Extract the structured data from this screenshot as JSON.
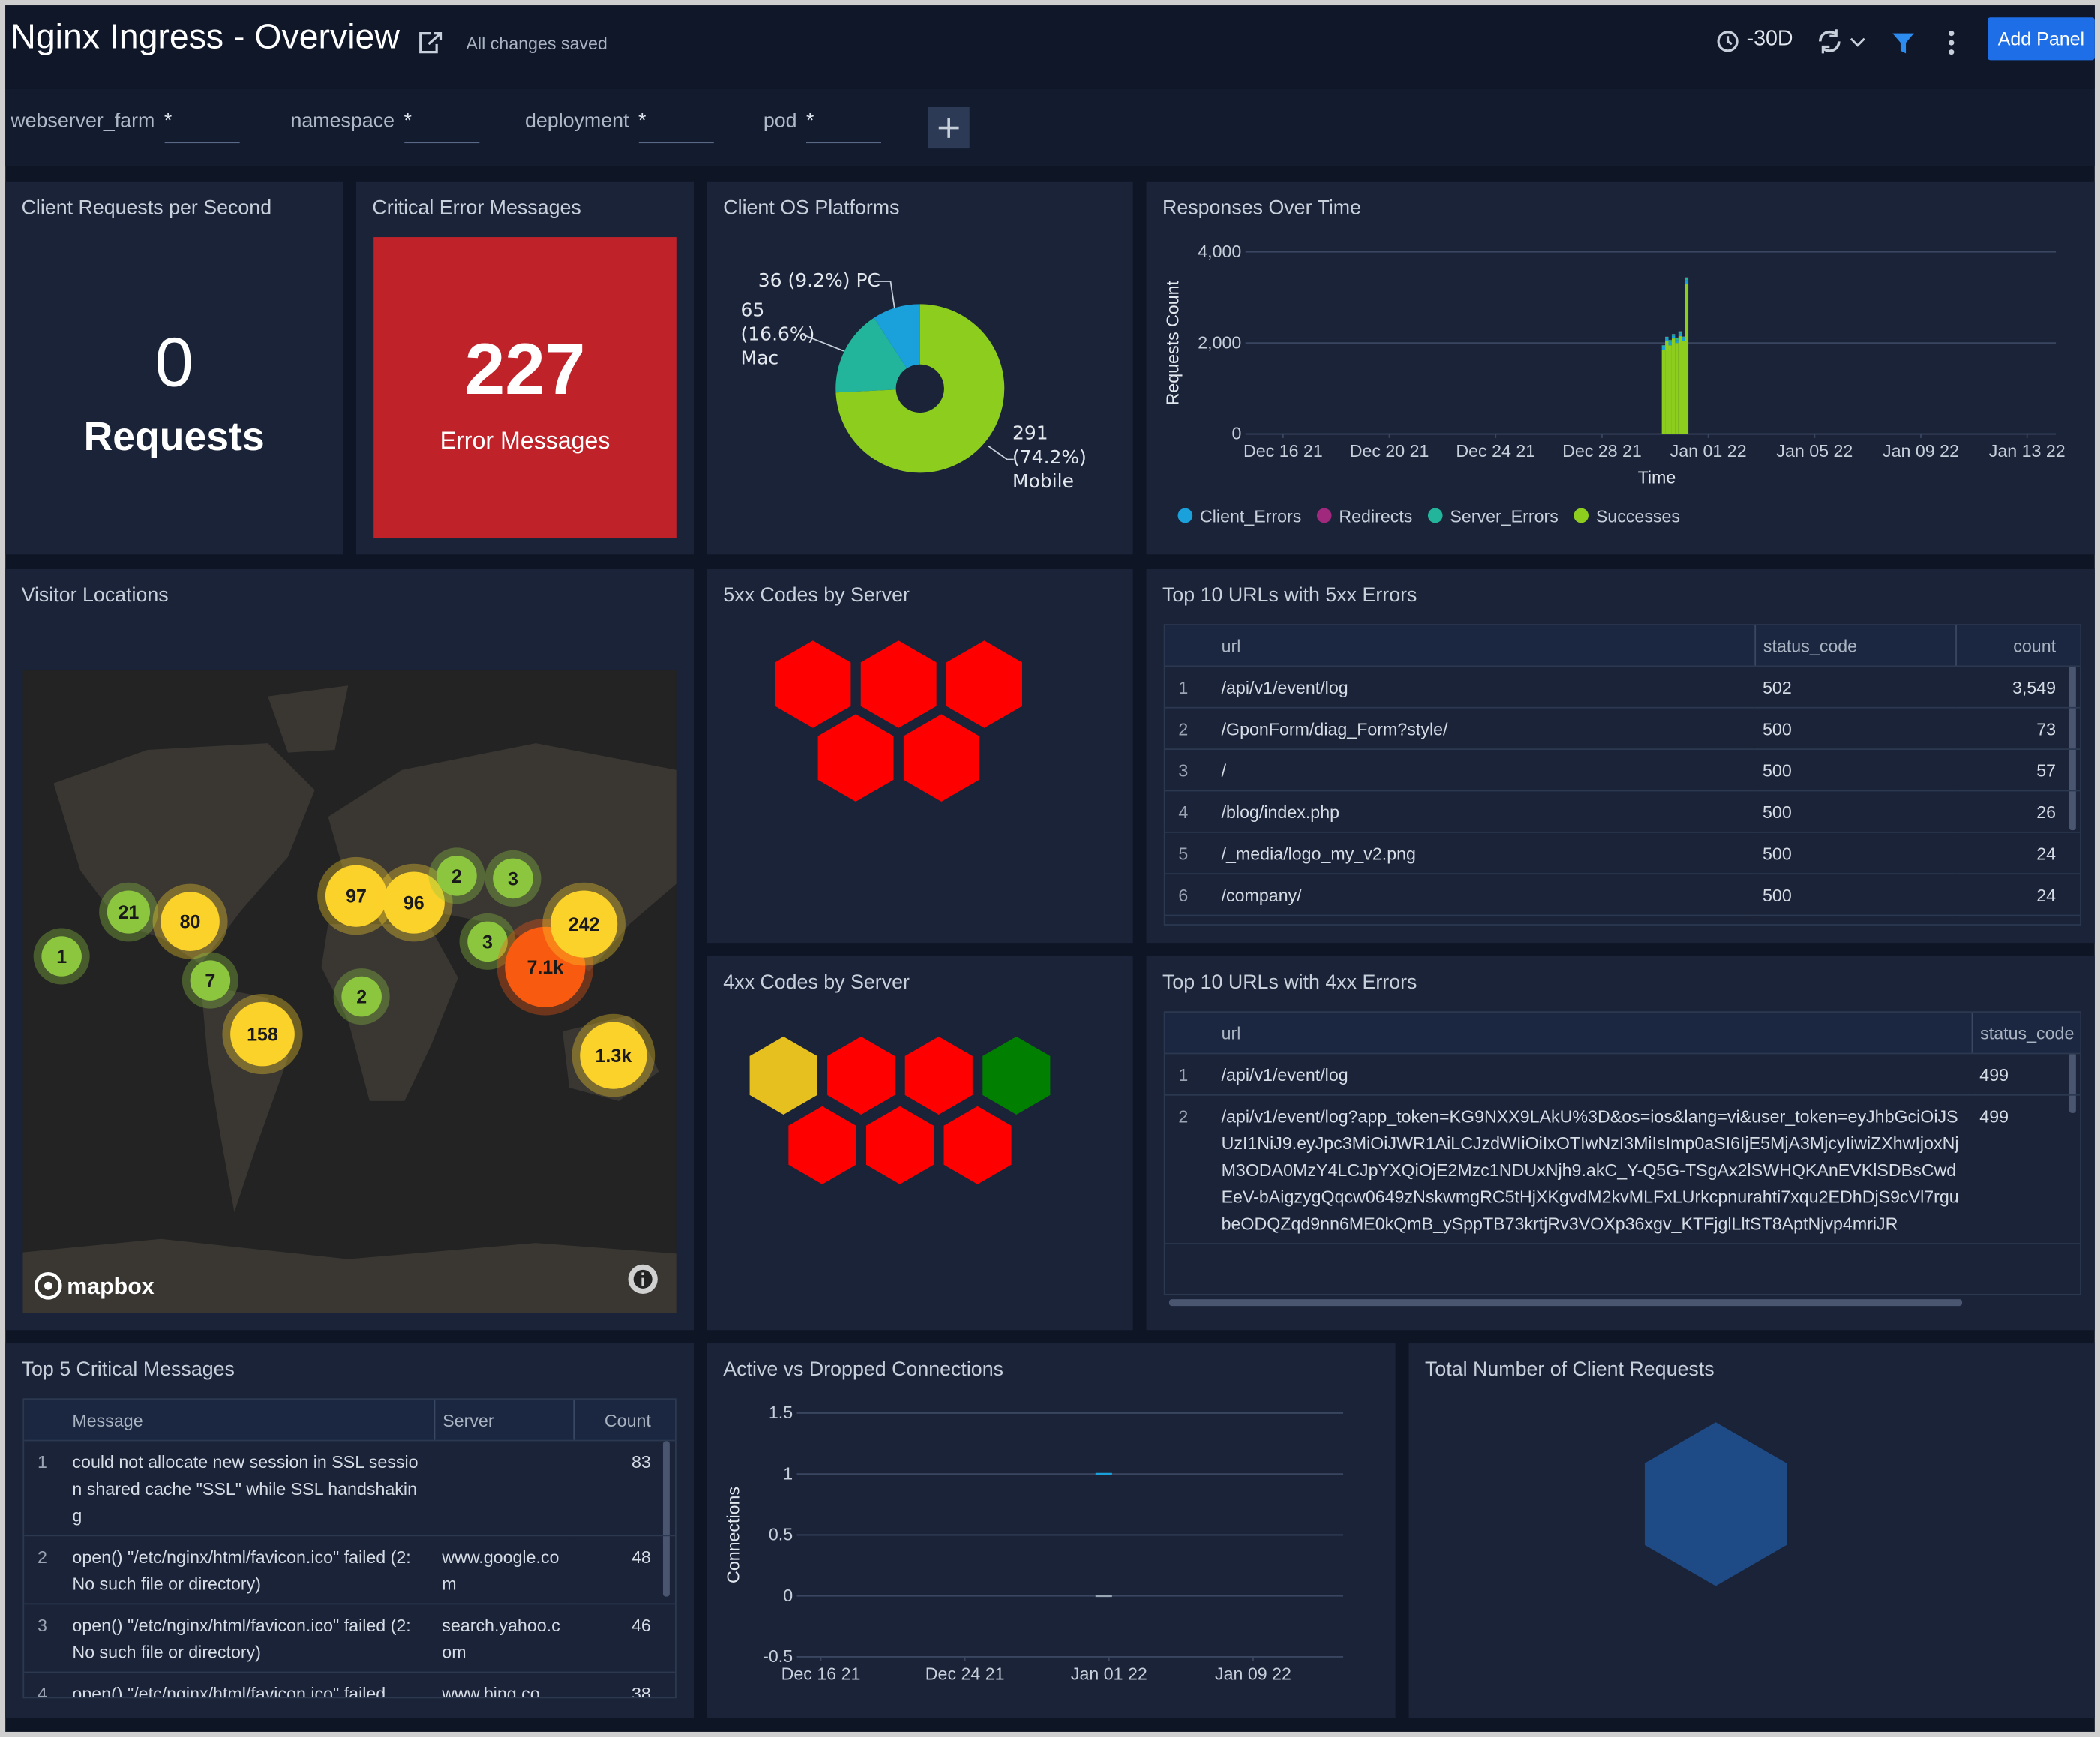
{
  "header": {
    "title": "Nginx Ingress - Overview",
    "status": "All changes saved",
    "time_range": "-30D",
    "add_button": "Add Panel"
  },
  "filters": [
    {
      "label": "webserver_farm",
      "value": "*"
    },
    {
      "label": "namespace",
      "value": "*"
    },
    {
      "label": "deployment",
      "value": "*"
    },
    {
      "label": "pod",
      "value": "*"
    }
  ],
  "stat_panels": [
    {
      "title": "Client Requests per Second",
      "value": 0,
      "unit": "Requests"
    },
    {
      "title": "Critical Error Messages",
      "value": 227,
      "unit": "Error Messages",
      "color": "#c0222a"
    }
  ],
  "chart_data": [
    {
      "type": "pie",
      "title": "Client OS Platforms",
      "categories": [
        "PC",
        "Mac",
        "Mobile"
      ],
      "values": [
        36,
        65,
        291
      ],
      "value_labels": [
        "36 (9.2%)",
        "65 (16.6%)",
        "291 (74.2%)"
      ],
      "colors": [
        "#1aa1dc",
        "#22b59b",
        "#8ccd1e"
      ],
      "donut": true
    },
    {
      "type": "bar",
      "stacked": true,
      "title": "Responses Over Time",
      "x_label": "Time",
      "y_label": "Requests Count",
      "x": [
        "2021-12-30T06:00",
        "2021-12-30T09:00",
        "2021-12-30T12:00",
        "2021-12-30T15:00",
        "2021-12-30T18:00",
        "2021-12-30T21:00",
        "2021-12-31T00:00",
        "2021-12-31T03:00"
      ],
      "series": [
        {
          "name": "Client_Errors",
          "color": "#1aa1dc",
          "values": [
            60,
            50,
            70,
            55,
            65,
            60,
            50,
            80
          ]
        },
        {
          "name": "Redirects",
          "color": "#a0287d",
          "values": [
            5,
            5,
            5,
            5,
            5,
            5,
            5,
            5
          ]
        },
        {
          "name": "Server_Errors",
          "color": "#22b59b",
          "values": [
            40,
            35,
            45,
            40,
            50,
            45,
            40,
            60
          ]
        },
        {
          "name": "Successes",
          "color": "#8ccd1e",
          "values": [
            1850,
            2050,
            1950,
            2100,
            2000,
            2150,
            2050,
            3300
          ]
        }
      ],
      "xlim": [
        "2021-12-14T14:00",
        "2022-01-14T02:00"
      ],
      "xticks": [
        {
          "value": "2021-12-16T00:00",
          "label": "Dec 16 21"
        },
        {
          "value": "2021-12-20T00:00",
          "label": "Dec 20 21"
        },
        {
          "value": "2021-12-24T00:00",
          "label": "Dec 24 21"
        },
        {
          "value": "2021-12-28T00:00",
          "label": "Dec 28 21"
        },
        {
          "value": "2022-01-01T00:00",
          "label": "Jan 01 22"
        },
        {
          "value": "2022-01-05T00:00",
          "label": "Jan 05 22"
        },
        {
          "value": "2022-01-09T00:00",
          "label": "Jan 09 22"
        },
        {
          "value": "2022-01-13T00:00",
          "label": "Jan 13 22"
        }
      ],
      "ylim": [
        0,
        4000
      ],
      "yticks": [
        0,
        {
          "value": 2000,
          "label": "2,000"
        },
        {
          "value": 4000,
          "label": "4,000"
        }
      ],
      "grid": true
    },
    {
      "type": "line",
      "title": "Active vs Dropped Connections",
      "y_label": "Connections",
      "x": [
        "2021-12-31T06:00",
        "2022-01-01T04:00"
      ],
      "series": [
        {
          "color": "#1aa1dc",
          "values": [
            1,
            1
          ]
        },
        {
          "color": "#9aa5b4",
          "values": [
            0,
            0
          ]
        }
      ],
      "xlim": [
        "2021-12-14T16:00",
        "2022-01-14T00:00"
      ],
      "xticks": [
        {
          "value": "2021-12-16T00:00",
          "label": "Dec 16 21"
        },
        {
          "value": "2021-12-24T00:00",
          "label": "Dec 24 21"
        },
        {
          "value": "2022-01-01T00:00",
          "label": "Jan 01 22"
        },
        {
          "value": "2022-01-09T00:00",
          "label": "Jan 09 22"
        }
      ],
      "ylim": [
        -0.5,
        1.5
      ],
      "yticks": [
        -0.5,
        0,
        0.5,
        1,
        1.5
      ],
      "grid": true
    }
  ],
  "map": {
    "title": "Visitor Locations",
    "attribution": "mapbox",
    "markers": [
      {
        "label": 1,
        "color": "#8cc63f"
      },
      {
        "label": 21,
        "color": "#8cc63f"
      },
      {
        "label": 80,
        "color": "#fbd22a"
      },
      {
        "label": 7,
        "color": "#8cc63f"
      },
      {
        "label": 158,
        "color": "#fbd22a"
      },
      {
        "label": 97,
        "color": "#fbd22a"
      },
      {
        "label": 96,
        "color": "#fbd22a"
      },
      {
        "label": 2,
        "color": "#8cc63f"
      },
      {
        "label": 3,
        "color": "#8cc63f"
      },
      {
        "label": 3,
        "color": "#8cc63f"
      },
      {
        "label": "7.1k",
        "color": "#f85a10"
      },
      {
        "label": 242,
        "color": "#fbd22a"
      },
      {
        "label": 2,
        "color": "#8cc63f"
      },
      {
        "label": "1.3k",
        "color": "#fbd22a"
      }
    ]
  },
  "honeycombs": [
    {
      "title": "5xx Codes by Server",
      "cells": [
        "#ff0000",
        "#ff0000",
        "#ff0000",
        "#ff0000",
        "#ff0000"
      ]
    },
    {
      "title": "4xx Codes by Server",
      "cells": [
        "#e6c01f",
        "#ff0000",
        "#ff0000",
        "#007f00",
        "#ff0000",
        "#ff0000",
        "#ff0000"
      ]
    },
    {
      "title": "Total Number of Client Requests",
      "cells": [
        "#1e4a85"
      ]
    }
  ],
  "tables": [
    {
      "title": "Top 10 URLs with 5xx Errors",
      "columns": [
        "url",
        "status_code",
        "count"
      ],
      "rows": [
        [
          1,
          "/api/v1/event/log",
          502,
          "3,549"
        ],
        [
          2,
          "/GponForm/diag_Form?style/",
          500,
          73
        ],
        [
          3,
          "/",
          500,
          57
        ],
        [
          4,
          "/blog/index.php",
          500,
          26
        ],
        [
          5,
          "/_media/logo_my_v2.png",
          500,
          24
        ],
        [
          6,
          "/company/",
          500,
          24
        ]
      ]
    },
    {
      "title": "Top 10 URLs with 4xx Errors",
      "columns": [
        "url",
        "status_code"
      ],
      "rows": [
        [
          1,
          "/api/v1/event/log",
          499
        ],
        [
          2,
          "/api/v1/event/log?app_token=KG9NXX9LAkU%3D&os=ios&lang=vi&user_token=eyJhbGciOiJSUzI1NiJ9.eyJpc3MiOiJWR1AiLCJzdWIiOiIxOTIwNzI3MiIsImp0aSI6IjE5MjA3MjcyIiwiZXhwIjoxNjM3ODA0MzY4LCJpYXQiOjE2Mzc1NDUxNjh9.akC_Y-Q5G-TSgAx2lSWHQKAnEVKlSDBsCwdEeV-bAigzygQqcw0649zNskwmgRC5tHjXKgvdM2kvMLFxLUrkcpnurahti7xqu2EDhDjS9cVl7rgubeODQZqd9nn6ME0kQmB_ySppTB73krtjRv3VOXp36xgv_KTFjglLltST8AptNjvp4mriJR",
          499
        ]
      ]
    },
    {
      "title": "Top 5 Critical Messages",
      "columns": [
        "Message",
        "Server",
        "Count"
      ],
      "rows": [
        [
          1,
          "could not allocate new session in SSL session shared cache \"SSL\" while SSL handshaking",
          null,
          83
        ],
        [
          2,
          "open() \"/etc/nginx/html/favicon.ico\" failed (2: No such file or directory)",
          "www.google.com",
          48
        ],
        [
          3,
          "open() \"/etc/nginx/html/favicon.ico\" failed (2: No such file or directory)",
          "search.yahoo.com",
          46
        ],
        [
          4,
          "open() \"/etc/nginx/html/favicon.ico\" failed",
          "www.bing.co",
          38
        ]
      ]
    }
  ]
}
